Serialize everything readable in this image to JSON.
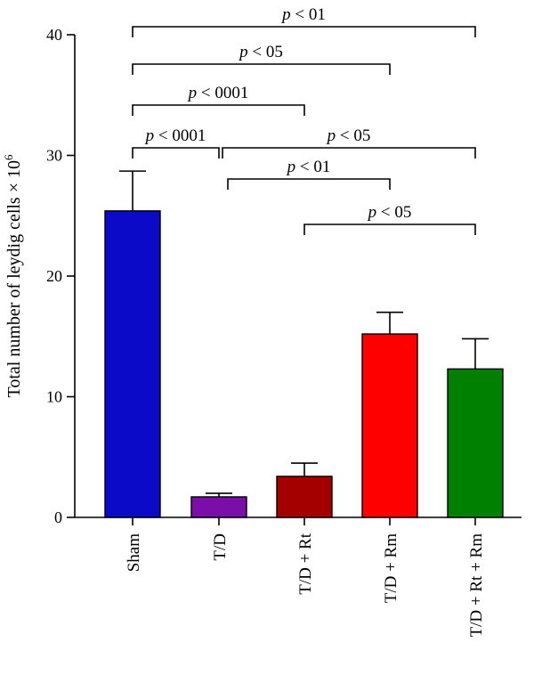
{
  "chart_data": {
    "type": "bar",
    "categories": [
      "Sham",
      "T/D",
      "T/D + Rt",
      "T/D + Rm",
      "T/D + Rt + Rm"
    ],
    "values": [
      25.4,
      1.7,
      3.4,
      15.2,
      12.3
    ],
    "errors": [
      3.3,
      0.3,
      1.1,
      1.8,
      2.5
    ],
    "colors": [
      "#0a0ac8",
      "#7a0ea8",
      "#a50000",
      "#ff0000",
      "#008000"
    ],
    "ylabel": "Total number of leydig cells × 10",
    "ylabel_superscript": "6",
    "ylim": [
      0,
      40
    ],
    "yticks": [
      0,
      10,
      20,
      30,
      40
    ],
    "comparisons": [
      {
        "from": 0,
        "to": 4,
        "text": "p < 01",
        "p": "p",
        "rest": " < 01"
      },
      {
        "from": 0,
        "to": 3,
        "text": "p < 05",
        "p": "p",
        "rest": " < 05"
      },
      {
        "from": 0,
        "to": 2,
        "text": "p < 0001",
        "p": "p",
        "rest": " < 0001"
      },
      {
        "from": 0,
        "to": 1,
        "text": "p < 0001",
        "p": "p",
        "rest": " < 0001"
      },
      {
        "from": 1,
        "to": 4,
        "text": "p < 05",
        "p": "p",
        "rest": " < 05"
      },
      {
        "from": 1,
        "to": 3,
        "text": "p < 01",
        "p": "p",
        "rest": " < 01"
      },
      {
        "from": 2,
        "to": 4,
        "text": "p < 05",
        "p": "p",
        "rest": " < 05"
      }
    ],
    "grid": false
  }
}
